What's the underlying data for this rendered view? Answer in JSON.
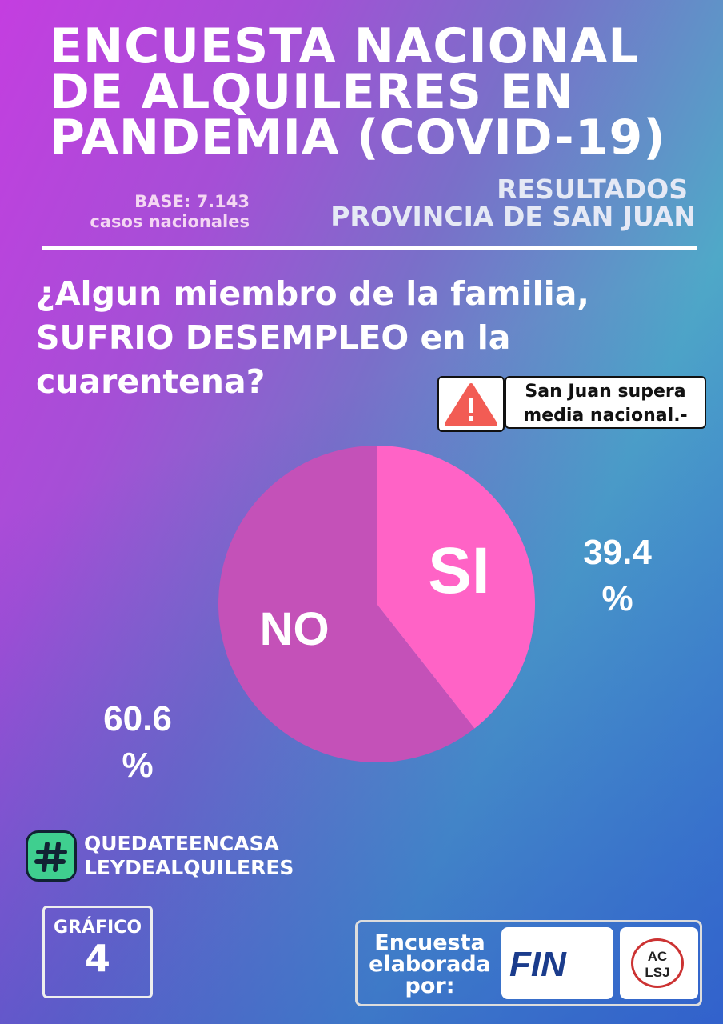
{
  "header": {
    "title_lines": [
      "ENCUESTA NACIONAL",
      "DE ALQUILERES EN",
      "PANDEMIA (COVID-19)"
    ],
    "base": [
      "BASE: 7.143",
      "casos nacionales"
    ],
    "results": [
      "RESULTADOS",
      "PROVINCIA DE SAN JUAN"
    ]
  },
  "chart_data": {
    "type": "pie",
    "title": "¿Algun miembro de la familia, SUFRIO DESEMPLEO en la cuarentena?",
    "categories": [
      "SI",
      "NO"
    ],
    "values": [
      39.4,
      60.6
    ],
    "value_labels": [
      "39.4 %",
      "60.6 %"
    ],
    "colors": [
      "#ff63c6",
      "#c451b8"
    ],
    "annotation": "San Juan supera media nacional.-"
  },
  "footer": {
    "hashtags": [
      "QUEDATEENCASA",
      "LEYDEALQUILERES"
    ],
    "chart_label": "GRÁFICO",
    "chart_number": "4",
    "credit": "Encuesta elaborada por:",
    "logos": [
      "FIN",
      "AC LSJ"
    ]
  }
}
